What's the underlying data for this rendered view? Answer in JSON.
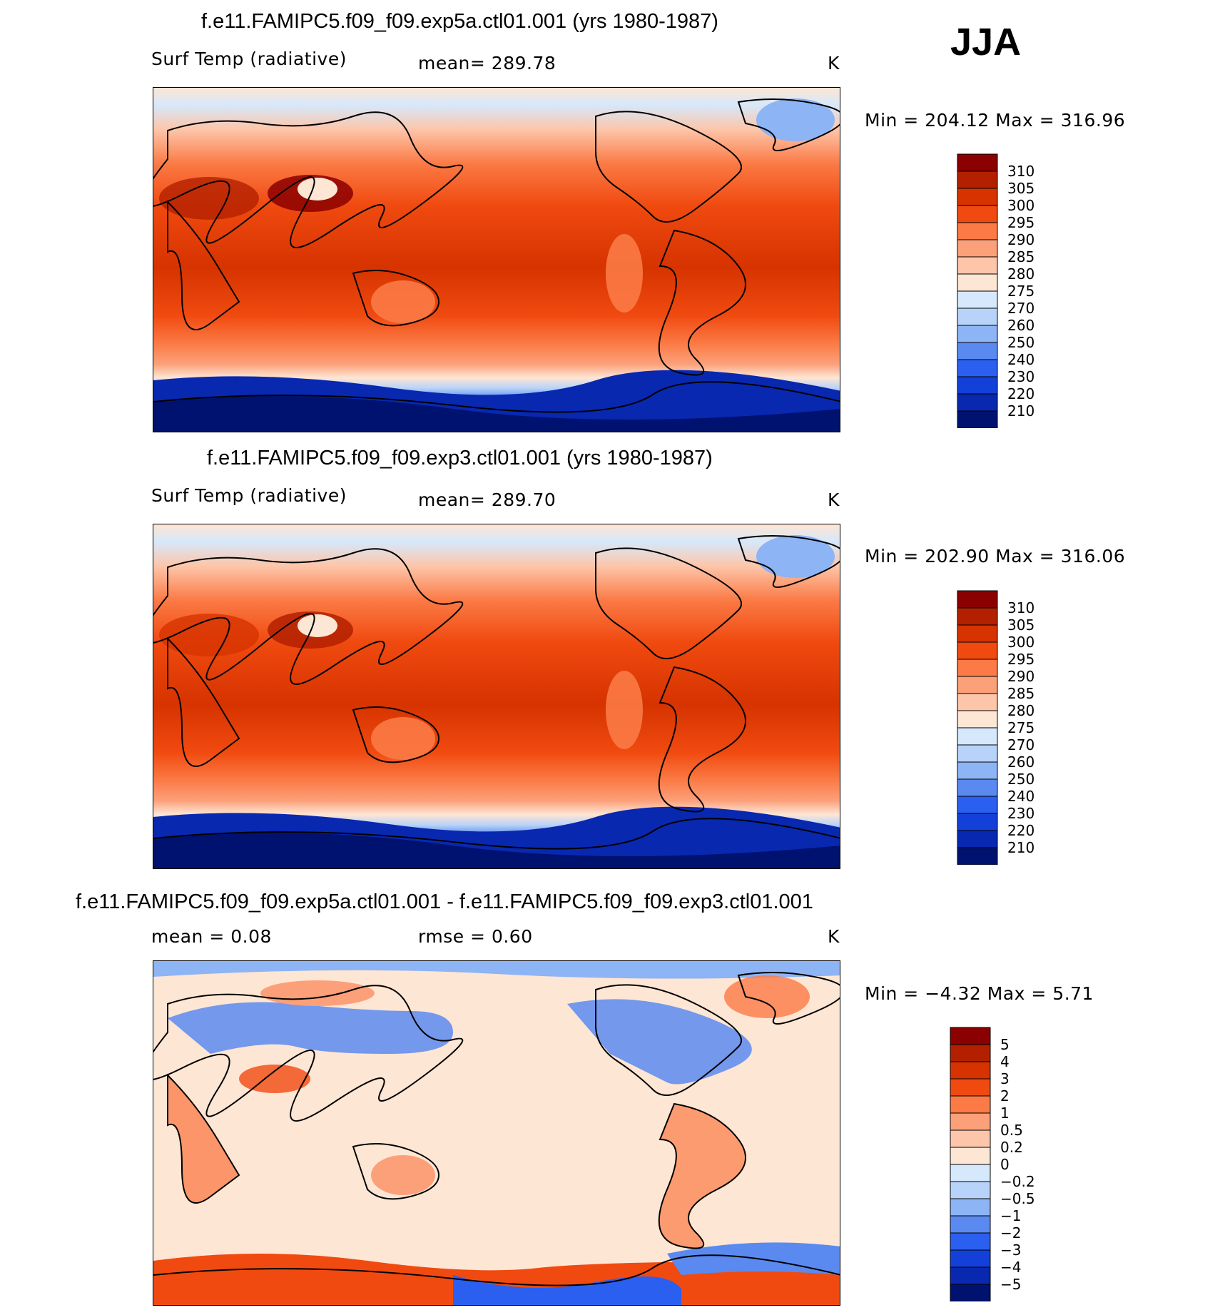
{
  "season": "JJA",
  "panels": [
    {
      "title": "f.e11.FAMIPC5.f09_f09.exp5a.ctl01.001 (yrs 1980-1987)",
      "variable": "Surf Temp (radiative)",
      "stat": "mean=  289.78",
      "units": "K",
      "minmax": "Min  =  204.12  Max  =  316.96",
      "colorbar": {
        "labels": [
          "310",
          "305",
          "300",
          "295",
          "290",
          "285",
          "280",
          "275",
          "270",
          "260",
          "250",
          "240",
          "230",
          "220",
          "210"
        ],
        "colors": [
          "#8b0000",
          "#b32000",
          "#d63300",
          "#f04a10",
          "#fb7a45",
          "#fca07a",
          "#fdc6aa",
          "#fee6d4",
          "#d6e8fb",
          "#b8d3f9",
          "#8db4f5",
          "#5a8af0",
          "#2a5ff0",
          "#1340d8",
          "#0828b0",
          "#001270"
        ]
      }
    },
    {
      "title": "f.e11.FAMIPC5.f09_f09.exp3.ctl01.001 (yrs 1980-1987)",
      "variable": "Surf Temp (radiative)",
      "stat": "mean=  289.70",
      "units": "K",
      "minmax": "Min  =  202.90  Max  =  316.06",
      "colorbar": {
        "labels": [
          "310",
          "305",
          "300",
          "295",
          "290",
          "285",
          "280",
          "275",
          "270",
          "260",
          "250",
          "240",
          "230",
          "220",
          "210"
        ],
        "colors": [
          "#8b0000",
          "#b32000",
          "#d63300",
          "#f04a10",
          "#fb7a45",
          "#fca07a",
          "#fdc6aa",
          "#fee6d4",
          "#d6e8fb",
          "#b8d3f9",
          "#8db4f5",
          "#5a8af0",
          "#2a5ff0",
          "#1340d8",
          "#0828b0",
          "#001270"
        ]
      }
    },
    {
      "title": "f.e11.FAMIPC5.f09_f09.exp5a.ctl01.001 - f.e11.FAMIPC5.f09_f09.exp3.ctl01.001",
      "stat_left": "mean  =      0.08",
      "stat_mid": "rmse  =      0.60",
      "units": "K",
      "minmax": "Min  =    −4.32  Max  =      5.71",
      "colorbar": {
        "labels": [
          "5",
          "4",
          "3",
          "2",
          "1",
          "0.5",
          "0.2",
          "0",
          "−0.2",
          "−0.5",
          "−1",
          "−2",
          "−3",
          "−4",
          "−5"
        ],
        "colors": [
          "#8b0000",
          "#b32000",
          "#d63300",
          "#f04a10",
          "#fb7a45",
          "#fca07a",
          "#fdc6aa",
          "#fee6d4",
          "#d6e8fb",
          "#b8d3f9",
          "#8db4f5",
          "#5a8af0",
          "#2a5ff0",
          "#1340d8",
          "#0828b0",
          "#001270"
        ]
      }
    }
  ]
}
